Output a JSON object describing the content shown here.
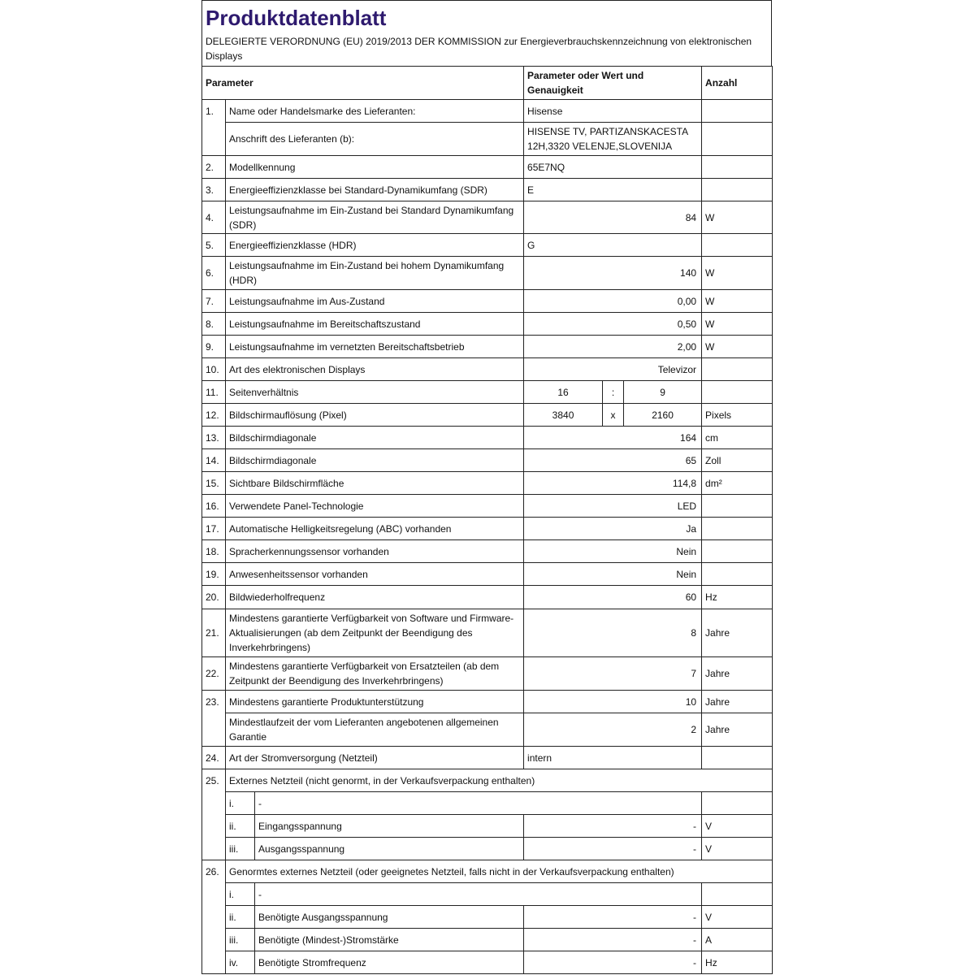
{
  "title": "Produktdatenblatt",
  "subtitle": "DELEGIERTE VERORDNUNG (EU) 2019/2013 DER KOMMISSION zur Energieverbrauchskennzeichnung von elektronischen Displays",
  "colors": {
    "title": "#2e1a6e",
    "border": "#222222"
  },
  "header": {
    "parameter": "Parameter",
    "value": "Parameter oder Wert und Genauigkeit",
    "unit": "Anzahl"
  },
  "rows": [
    {
      "type": "std",
      "h": 28,
      "num": "1.",
      "param": "Name oder Handelsmarke des Lieferanten:",
      "value": "Hisense",
      "align": "left",
      "unit": "",
      "ob": true
    },
    {
      "type": "std",
      "h": 41,
      "num": "",
      "param": "Anschrift des Lieferanten (b):",
      "value": "HISENSE TV, PARTIZANSKACESTA 12H,3320 VELENJE,SLOVENIJA",
      "align": "left",
      "unit": "",
      "ot": true
    },
    {
      "type": "std",
      "h": 28,
      "num": "2.",
      "param": "Modellkennung",
      "value": "65E7NQ",
      "align": "left",
      "unit": ""
    },
    {
      "type": "std",
      "h": 28,
      "num": "3.",
      "param": "Energieeffizienzklasse bei Standard-Dynamikumfang (SDR)",
      "value": "E",
      "align": "left",
      "unit": ""
    },
    {
      "type": "std",
      "h": 40,
      "num": "4.",
      "param": "Leistungsaufnahme im Ein-Zustand bei Standard Dynamikumfang (SDR)",
      "value": "84",
      "align": "right",
      "unit": "W"
    },
    {
      "type": "std",
      "h": 28,
      "num": "5.",
      "param": "Energieeffizienzklasse (HDR)",
      "value": "G",
      "align": "left",
      "unit": ""
    },
    {
      "type": "std",
      "h": 41,
      "num": "6.",
      "param": "Leistungsaufnahme im Ein-Zustand bei hohem Dynamikumfang (HDR)",
      "value": "140",
      "align": "right",
      "unit": "W"
    },
    {
      "type": "std",
      "h": 28,
      "num": "7.",
      "param": "Leistungsaufnahme im Aus-Zustand",
      "value": "0,00",
      "align": "right",
      "unit": "W"
    },
    {
      "type": "std",
      "h": 28,
      "num": "8.",
      "param": "Leistungsaufnahme im Bereitschaftszustand",
      "value": "0,50",
      "align": "right",
      "unit": "W"
    },
    {
      "type": "std",
      "h": 28,
      "num": "9.",
      "param": "Leistungsaufnahme im vernetzten Bereitschaftsbetrieb",
      "value": "2,00",
      "align": "right",
      "unit": "W"
    },
    {
      "type": "std",
      "h": 28,
      "num": "10.",
      "param": "Art des elektronischen Displays",
      "value": "Televizor",
      "align": "right",
      "unit": ""
    },
    {
      "type": "split",
      "h": 28,
      "num": "11.",
      "param": "Seitenverhältnis",
      "a": "16",
      "sep": ":",
      "b": "9",
      "unit": ""
    },
    {
      "type": "split",
      "h": 28,
      "num": "12.",
      "param": "Bildschirmauflösung (Pixel)",
      "a": "3840",
      "sep": "x",
      "b": "2160",
      "unit": "Pixels"
    },
    {
      "type": "std",
      "h": 28,
      "num": "13.",
      "param": "Bildschirmdiagonale",
      "value": "164",
      "align": "right",
      "unit": "cm"
    },
    {
      "type": "std",
      "h": 28,
      "num": "14.",
      "param": "Bildschirmdiagonale",
      "value": "65",
      "align": "right",
      "unit": "Zoll"
    },
    {
      "type": "std",
      "h": 28,
      "num": "15.",
      "param": "Sichtbare Bildschirmfläche",
      "value": "114,8",
      "align": "right",
      "unit": "dm²"
    },
    {
      "type": "std",
      "h": 28,
      "num": "16.",
      "param": "Verwendete Panel-Technologie",
      "value": "LED",
      "align": "right",
      "unit": ""
    },
    {
      "type": "std",
      "h": 28,
      "num": "17.",
      "param": "Automatische Helligkeitsregelung (ABC) vorhanden",
      "value": "Ja",
      "align": "right",
      "unit": ""
    },
    {
      "type": "std",
      "h": 28,
      "num": "18.",
      "param": "Spracherkennungssensor vorhanden",
      "value": "Nein",
      "align": "right",
      "unit": ""
    },
    {
      "type": "std",
      "h": 28,
      "num": "19.",
      "param": "Anwesenheitssensor vorhanden",
      "value": "Nein",
      "align": "right",
      "unit": ""
    },
    {
      "type": "std",
      "h": 29,
      "num": "20.",
      "param": "Bildwiederholfrequenz",
      "value": "60",
      "align": "right",
      "unit": "Hz"
    },
    {
      "type": "std",
      "h": 59,
      "num": "21.",
      "param": "Mindestens garantierte Verfügbarkeit von Software und Firmware-Aktualisierungen (ab dem Zeitpunkt der Beendigung des Inverkehrbringens)",
      "value": "8",
      "align": "right",
      "unit": "Jahre"
    },
    {
      "type": "std",
      "h": 41,
      "num": "22.",
      "param": "Mindestens garantierte Verfügbarkeit von Ersatzteilen (ab dem Zeitpunkt der Beendigung des Inverkehrbringens)",
      "value": "7",
      "align": "right",
      "unit": "Jahre"
    },
    {
      "type": "std",
      "h": 28,
      "num": "23.",
      "param": "Mindestens garantierte Produktunterstützung",
      "value": "10",
      "align": "right",
      "unit": "Jahre",
      "ob": true
    },
    {
      "type": "std",
      "h": 41,
      "num": "",
      "param": "Mindestlaufzeit der vom Lieferanten angebotenen allgemeinen Garantie",
      "value": "2",
      "align": "right",
      "unit": "Jahre",
      "ot": true
    },
    {
      "type": "std",
      "h": 28,
      "num": "24.",
      "param": "Art der Stromversorgung (Netzteil)",
      "value": "intern",
      "align": "left",
      "unit": ""
    },
    {
      "type": "section",
      "h": 28,
      "num": "25.",
      "param": "Externes Netzteil (nicht genormt, in der Verkaufsverpackung enthalten)"
    },
    {
      "type": "subrow",
      "h": 28,
      "roman": "i.",
      "param": "-",
      "value": "",
      "unit": "",
      "last": false,
      "full": true
    },
    {
      "type": "subrow",
      "h": 28,
      "roman": "ii.",
      "param": "Eingangsspannung",
      "value": "-",
      "unit": "V",
      "last": false
    },
    {
      "type": "subrow",
      "h": 28,
      "roman": "iii.",
      "param": "Ausgangsspannung",
      "value": "-",
      "unit": "V",
      "last": true
    },
    {
      "type": "section",
      "h": 28,
      "num": "26.",
      "param": "Genormtes externes Netzteil (oder geeignetes Netzteil, falls nicht in der Verkaufsverpackung enthalten)"
    },
    {
      "type": "subrow",
      "h": 28,
      "roman": "i.",
      "param": "-",
      "value": "",
      "unit": "",
      "last": false,
      "full": true
    },
    {
      "type": "subrow",
      "h": 28,
      "roman": "ii.",
      "param": "Benötigte Ausgangsspannung",
      "value": "-",
      "unit": "V",
      "last": false
    },
    {
      "type": "subrow",
      "h": 28,
      "roman": "iii.",
      "param": "Benötigte (Mindest-)Stromstärke",
      "value": "-",
      "unit": "A",
      "last": false
    },
    {
      "type": "subrow",
      "h": 28,
      "roman": "iv.",
      "param": "Benötigte Stromfrequenz",
      "value": "-",
      "unit": "Hz",
      "last": true
    }
  ]
}
